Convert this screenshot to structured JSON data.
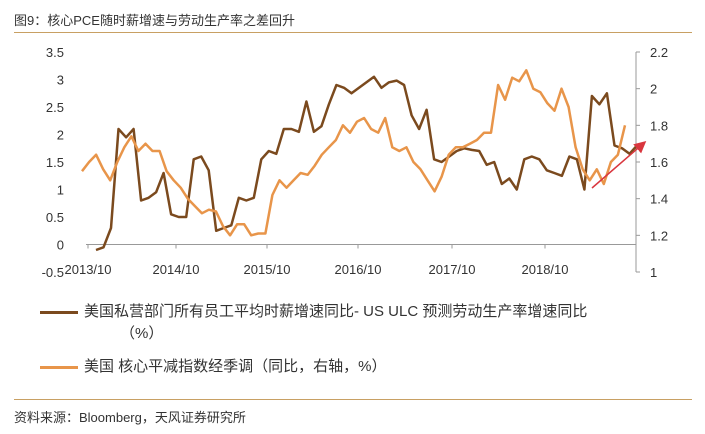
{
  "title": "图9：核心PCE随时薪增速与劳动生产率之差回升",
  "source": "资料来源：Bloomberg，天风证券研究所",
  "colors": {
    "series1": "#7b4a1e",
    "series2": "#e8954a",
    "arrow": "#d9363e",
    "rule": "#c8a063"
  },
  "chart_data": {
    "type": "line",
    "title": "图9：核心PCE随时薪增速与劳动生产率之差回升",
    "x_tick_labels": [
      "2013/10",
      "2014/10",
      "2015/10",
      "2016/10",
      "2017/10",
      "2018/10"
    ],
    "y_left": {
      "ticks": [
        "-0.5",
        "0",
        "0.5",
        "1",
        "1.5",
        "2",
        "2.5",
        "3",
        "3.5"
      ],
      "range": [
        -0.5,
        3.5
      ]
    },
    "y_right": {
      "ticks": [
        "1",
        "1.2",
        "1.4",
        "1.6",
        "1.8",
        "2",
        "2.2"
      ],
      "range": [
        1,
        2.2
      ]
    },
    "series": [
      {
        "name": "美国私营部门所有员工平均时薪增速同比- US ULC 预测劳动生产率增速同比（%）",
        "axis": "left",
        "values": [
          -0.1,
          -0.05,
          0.3,
          2.1,
          1.95,
          2.1,
          0.8,
          0.85,
          0.95,
          1.3,
          0.55,
          0.5,
          0.5,
          1.55,
          1.6,
          1.35,
          0.25,
          0.3,
          0.35,
          0.85,
          0.8,
          0.85,
          1.55,
          1.7,
          1.65,
          2.1,
          2.1,
          2.05,
          2.6,
          2.05,
          2.15,
          2.55,
          2.9,
          2.85,
          2.75,
          2.85,
          2.95,
          3.05,
          2.85,
          2.95,
          2.98,
          2.9,
          2.35,
          2.1,
          2.45,
          1.55,
          1.5,
          1.6,
          1.7,
          1.75,
          1.72,
          1.7,
          1.45,
          1.5,
          1.1,
          1.2,
          1.0,
          1.55,
          1.6,
          1.55,
          1.35,
          1.3,
          1.25,
          1.6,
          1.55,
          1.0,
          2.7,
          2.55,
          2.75,
          1.8,
          1.75,
          1.65,
          1.8
        ]
      },
      {
        "name": "美国 核心平减指数经季调（同比，右轴，%）",
        "axis": "right",
        "values": [
          1.55,
          1.6,
          1.64,
          1.56,
          1.5,
          1.6,
          1.68,
          1.74,
          1.66,
          1.7,
          1.66,
          1.66,
          1.55,
          1.5,
          1.46,
          1.4,
          1.36,
          1.32,
          1.34,
          1.33,
          1.25,
          1.2,
          1.26,
          1.26,
          1.2,
          1.21,
          1.21,
          1.42,
          1.5,
          1.46,
          1.5,
          1.54,
          1.53,
          1.58,
          1.64,
          1.68,
          1.72,
          1.8,
          1.76,
          1.82,
          1.84,
          1.78,
          1.76,
          1.84,
          1.68,
          1.66,
          1.68,
          1.6,
          1.56,
          1.5,
          1.44,
          1.52,
          1.64,
          1.68,
          1.68,
          1.7,
          1.72,
          1.76,
          1.76,
          2.02,
          1.94,
          2.06,
          2.04,
          2.1,
          2.0,
          1.98,
          1.92,
          1.88,
          2.0,
          1.9,
          1.68,
          1.56,
          1.5,
          1.56,
          1.48,
          1.6,
          1.64,
          1.8
        ]
      }
    ],
    "annotation": "upward red arrow indicating rebound"
  },
  "legend": {
    "item1_line1": "美国私营部门所有员工平均时薪增速同比- US ULC 预测劳动生产率增速同比",
    "item1_line2": "（%）",
    "item2": "美国 核心平减指数经季调（同比，右轴，%）"
  }
}
